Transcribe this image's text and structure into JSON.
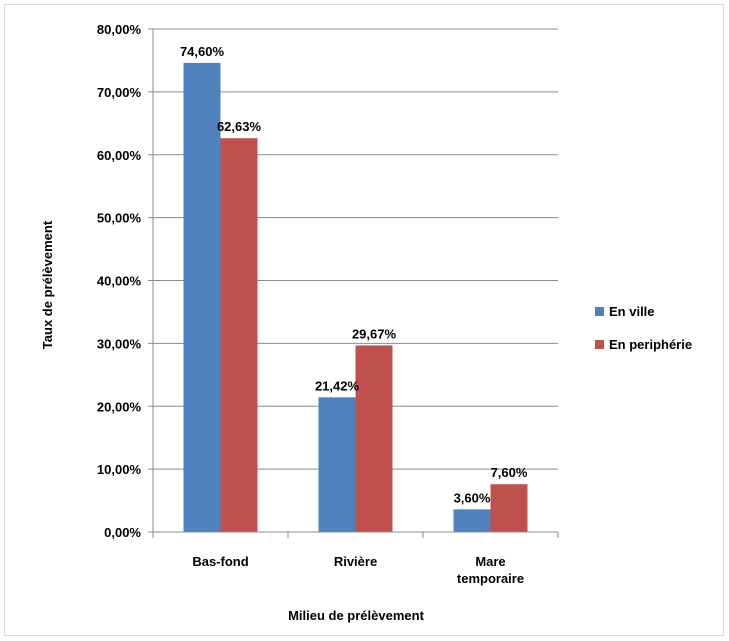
{
  "chart_data": {
    "type": "bar",
    "title": "",
    "xlabel": "Milieu de prélèvement",
    "ylabel": "Taux de prélèvement",
    "categories": [
      [
        "Bas-fond"
      ],
      [
        "Rivière"
      ],
      [
        "Mare",
        "temporaire"
      ]
    ],
    "series": [
      {
        "name": "En ville",
        "color": "#4f81bd",
        "values": [
          74.6,
          21.42,
          3.6
        ],
        "labels": [
          "74,60%",
          "21,42%",
          "3,60%"
        ]
      },
      {
        "name": "En periphérie",
        "color": "#c0504d",
        "values": [
          62.63,
          29.67,
          7.6
        ],
        "labels": [
          "62,63%",
          "29,67%",
          "7,60%"
        ]
      }
    ],
    "ylim": [
      0,
      80
    ],
    "yticks": [
      "0,00%",
      "10,00%",
      "20,00%",
      "30,00%",
      "40,00%",
      "50,00%",
      "60,00%",
      "70,00%",
      "80,00%"
    ],
    "grid": true,
    "legend_position": "right"
  }
}
